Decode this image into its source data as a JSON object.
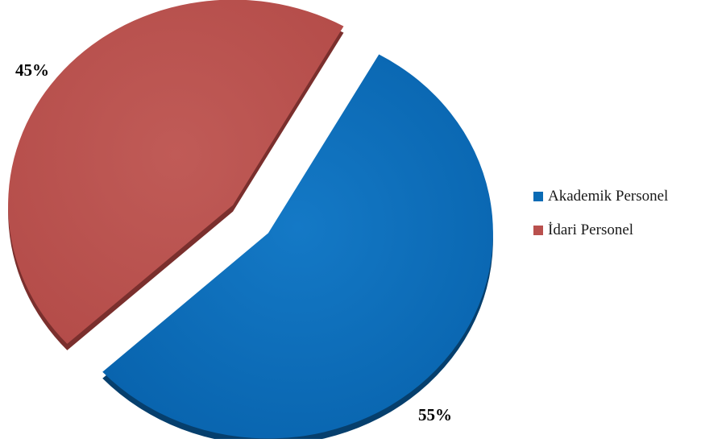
{
  "chart_data": {
    "type": "pie",
    "categories": [
      "Akademik Personel",
      "İdari Personel"
    ],
    "values": [
      55,
      45
    ],
    "labels": [
      "55%",
      "45%"
    ],
    "unit": "%",
    "title": "",
    "legend_position": "right",
    "colors": [
      "#0a6bb5",
      "#b9504d"
    ],
    "exploded": true,
    "style": "3d-tilted"
  }
}
